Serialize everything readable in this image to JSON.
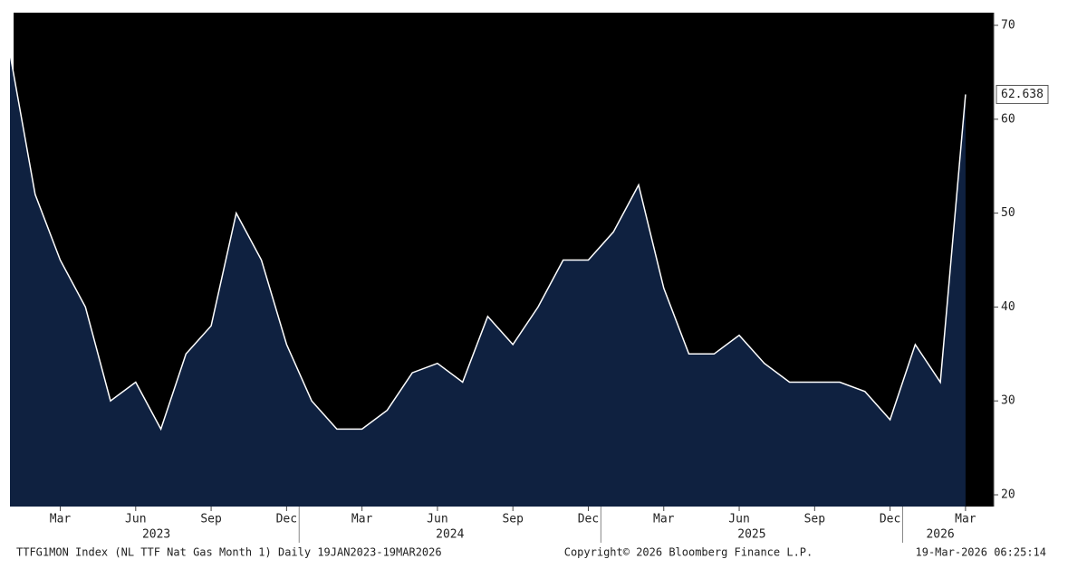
{
  "chart_data": {
    "type": "area",
    "x": [
      "2023-01",
      "2023-02",
      "2023-03",
      "2023-04",
      "2023-05",
      "2023-06",
      "2023-07",
      "2023-08",
      "2023-09",
      "2023-10",
      "2023-11",
      "2023-12",
      "2024-01",
      "2024-02",
      "2024-03",
      "2024-04",
      "2024-05",
      "2024-06",
      "2024-07",
      "2024-08",
      "2024-09",
      "2024-10",
      "2024-11",
      "2024-12",
      "2025-01",
      "2025-02",
      "2025-03",
      "2025-04",
      "2025-05",
      "2025-06",
      "2025-07",
      "2025-08",
      "2025-09",
      "2025-10",
      "2025-11",
      "2025-12",
      "2026-01",
      "2026-02",
      "2026-03"
    ],
    "series": [
      {
        "color": "#ffffff",
        "fill": "#0f2140",
        "values": [
          67,
          52,
          45,
          40,
          30,
          32,
          27,
          35,
          38,
          50,
          45,
          36,
          30,
          27,
          27,
          29,
          33,
          34,
          32,
          39,
          36,
          40,
          45,
          45,
          48,
          53,
          42,
          35,
          35,
          37,
          34,
          32,
          32,
          32,
          31,
          28,
          36,
          32,
          62.638
        ]
      }
    ],
    "ylim": [
      18.75,
      71.35
    ],
    "yticks": [
      20,
      30,
      40,
      50,
      60,
      70
    ],
    "xticks": [
      {
        "value": "2023-03",
        "label": "Mar"
      },
      {
        "value": "2023-06",
        "label": "Jun"
      },
      {
        "value": "2023-09",
        "label": "Sep"
      },
      {
        "value": "2023-12",
        "label": "Dec"
      },
      {
        "value": "2024-03",
        "label": "Mar"
      },
      {
        "value": "2024-06",
        "label": "Jun"
      },
      {
        "value": "2024-09",
        "label": "Sep"
      },
      {
        "value": "2024-12",
        "label": "Dec"
      },
      {
        "value": "2025-03",
        "label": "Mar"
      },
      {
        "value": "2025-06",
        "label": "Jun"
      },
      {
        "value": "2025-09",
        "label": "Sep"
      },
      {
        "value": "2025-12",
        "label": "Dec"
      },
      {
        "value": "2026-03",
        "label": "Mar"
      }
    ],
    "year_labels": [
      "2023",
      "2024",
      "2025",
      "2026"
    ],
    "footer_left": "TTFG1MON Index (NL TTF Nat Gas Month 1) Daily 19JAN2023-19MAR2026",
    "footer_center": "Copyright© 2026 Bloomberg Finance L.P.",
    "footer_right": "19-Mar-2026 06:25:14"
  }
}
